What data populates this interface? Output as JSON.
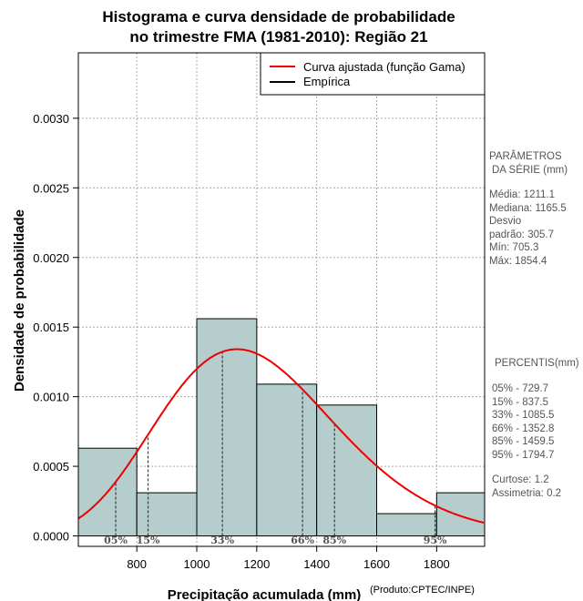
{
  "chart_data": {
    "type": "bar",
    "title_line1": "Histograma e curva densidade de probabilidade",
    "title_line2": "no trimestre FMA (1981-2010): Região 21",
    "xlabel": "Precipitação acumulada (mm)",
    "ylabel": "Densidade de probabilidade",
    "credit": "(Produto:CPTEC/INPE)",
    "xlim": [
      605,
      1960
    ],
    "ylim": [
      -7.5e-05,
      0.00347
    ],
    "x_ticks": [
      800,
      1000,
      1200,
      1400,
      1600,
      1800
    ],
    "x_tick_labels": [
      "800",
      "1000",
      "1200",
      "1400",
      "1600",
      "1800"
    ],
    "y_ticks": [
      0.0,
      0.0005,
      0.001,
      0.0015,
      0.002,
      0.0025,
      0.003
    ],
    "y_tick_labels": [
      "0.0000",
      "0.0005",
      "0.0010",
      "0.0015",
      "0.0020",
      "0.0025",
      "0.0030"
    ],
    "grid": true,
    "histogram": [
      {
        "x0": 600,
        "x1": 800,
        "density": 0.00063
      },
      {
        "x0": 800,
        "x1": 1000,
        "density": 0.00031
      },
      {
        "x0": 1000,
        "x1": 1200,
        "density": 0.00156
      },
      {
        "x0": 1200,
        "x1": 1400,
        "density": 0.00109
      },
      {
        "x0": 1400,
        "x1": 1600,
        "density": 0.00094
      },
      {
        "x0": 1600,
        "x1": 1800,
        "density": 0.00016
      },
      {
        "x0": 1800,
        "x1": 2000,
        "density": 0.00031
      }
    ],
    "gamma_fit": {
      "mean": 1211.1,
      "sd": 305.7
    },
    "legend": {
      "position": "top-right",
      "entries": [
        {
          "label": "Curva ajustada (função Gama)",
          "color": "#ee0000"
        },
        {
          "label": "Empírica",
          "color": "#000000"
        }
      ]
    },
    "percentiles": [
      {
        "label": "05%",
        "value": 729.7
      },
      {
        "label": "15%",
        "value": 837.5
      },
      {
        "label": "33%",
        "value": 1085.5
      },
      {
        "label": "66%",
        "value": 1352.8
      },
      {
        "label": "85%",
        "value": 1459.5
      },
      {
        "label": "95%",
        "value": 1794.7
      }
    ],
    "bar_color": "#b5cecd",
    "curve_color": "#ee0000"
  },
  "side_panel": {
    "params_title_1": "PARÂMETROS",
    "params_title_2": "DA SÉRIE (mm)",
    "media": "Média:  1211.1",
    "mediana": "Mediana:  1165.5",
    "desvio_1": "Desvio",
    "desvio_2": "padrão:  305.7",
    "min": "Mín:  705.3",
    "max": "Máx:  1854.4",
    "percentis_title": "PERCENTIS(mm)",
    "p05": "05% -  729.7",
    "p15": "15% -  837.5",
    "p33": "33% -  1085.5",
    "p66": "66% -  1352.8",
    "p85": "85% -  1459.5",
    "p95": "95% -  1794.7",
    "curtose": "Curtose:  1.2",
    "assimetria": "Assimetria:  0.2"
  }
}
